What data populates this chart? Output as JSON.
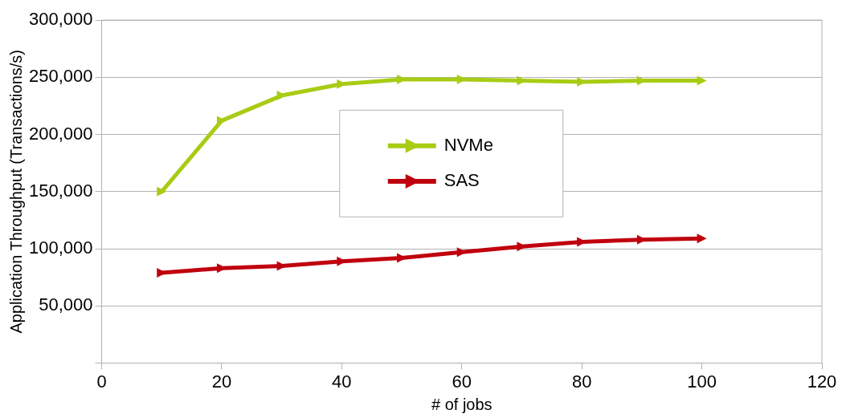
{
  "chart_data": {
    "type": "line",
    "xlabel": "# of jobs",
    "ylabel": "Application Throughput (Transactions/s)",
    "x": [
      10,
      20,
      30,
      40,
      50,
      60,
      70,
      80,
      90,
      100
    ],
    "series": [
      {
        "name": "NVMe",
        "color": "#a8cc14",
        "values": [
          150000,
          212000,
          234000,
          244000,
          248000,
          248000,
          247000,
          246000,
          247000,
          247000
        ]
      },
      {
        "name": "SAS",
        "color": "#c0000e",
        "values": [
          79000,
          83000,
          85000,
          89000,
          92000,
          97000,
          102000,
          106000,
          108000,
          109000
        ]
      }
    ],
    "xlim": [
      0,
      120
    ],
    "xticks": [
      0,
      20,
      40,
      60,
      80,
      100,
      120
    ],
    "ylim": [
      0,
      300000
    ],
    "yticks": [
      {
        "value": 0,
        "label": null
      },
      {
        "value": 50000,
        "label": "50,000"
      },
      {
        "value": 100000,
        "label": "100,000"
      },
      {
        "value": 150000,
        "label": "150,000"
      },
      {
        "value": 200000,
        "label": "200,000"
      },
      {
        "value": 250000,
        "label": "250,000"
      },
      {
        "value": 300000,
        "label": "300,000"
      }
    ],
    "grid": "y",
    "legend": "center",
    "marker": "triangle",
    "line_style": "solid"
  }
}
